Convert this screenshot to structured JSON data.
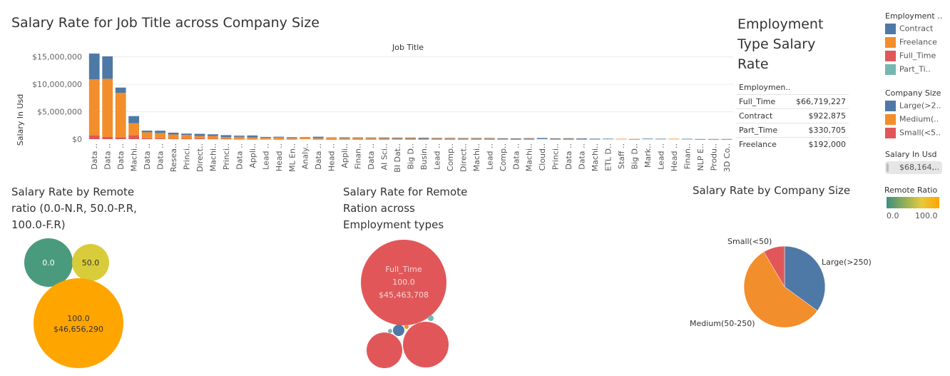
{
  "colors": {
    "contract": "#4e79a7",
    "freelance": "#f28e2b",
    "full_time": "#e15759",
    "part_time": "#76b7b2",
    "large": "#4e79a7",
    "medium": "#f28e2b",
    "small": "#e15759",
    "remote_low": "#59a14f",
    "remote_high": "#ffa500"
  },
  "titles": {
    "main": "Salary Rate for Job Title across Company Size",
    "emp_type": "Employment Type Salary Rate",
    "remote": "Salary Rate by Remote ratio (0.0-N.R, 50.0-P.R, 100.0-F.R)",
    "remote_emp": "Salary Rate for Remote Ration across Employment types",
    "company": "Salary Rate by Company Size"
  },
  "emp_table": {
    "header": "Employmen..",
    "rows": [
      {
        "label": "Full_Time",
        "value": "$66,719,227"
      },
      {
        "label": "Contract",
        "value": "$922,875"
      },
      {
        "label": "Part_Time",
        "value": "$330,705"
      },
      {
        "label": "Freelance",
        "value": "$192,000"
      }
    ]
  },
  "legends": {
    "employment": {
      "title": "Employment ..",
      "items": [
        {
          "label": "Contract",
          "color": "#4e79a7"
        },
        {
          "label": "Freelance",
          "color": "#f28e2b"
        },
        {
          "label": "Full_Time",
          "color": "#e15759"
        },
        {
          "label": "Part_Ti..",
          "color": "#76b7b2"
        }
      ]
    },
    "company": {
      "title": "Company Size",
      "items": [
        {
          "label": "Large(>2..",
          "color": "#4e79a7"
        },
        {
          "label": "Medium(..",
          "color": "#f28e2b"
        },
        {
          "label": "Small(<5..",
          "color": "#e15759"
        }
      ]
    },
    "salary": {
      "title": "Salary In Usd",
      "value": "$68,164,.."
    },
    "remote": {
      "title": "Remote Ratio",
      "min": "0.0",
      "max": "100.0"
    }
  },
  "chart_data": [
    {
      "type": "bar",
      "stacked": true,
      "title": "Salary Rate for Job Title across Company Size",
      "xlabel": "Job Title",
      "ylabel": "Salary In Usd",
      "ylim": [
        0,
        16000000
      ],
      "yticks": [
        "$0",
        "$5,000,000",
        "$10,000,000",
        "$15,000,000"
      ],
      "grid": true,
      "categories": [
        "Data ..",
        "Data ..",
        "Data ..",
        "Machi..",
        "Data ..",
        "Data ..",
        "Resea..",
        "Princi..",
        "Direct..",
        "Machi..",
        "Princi..",
        "Data ..",
        "Appli..",
        "Lead ..",
        "Head ..",
        "ML En..",
        "Analy..",
        "Data ..",
        "Head ..",
        "Appli..",
        "Finan..",
        "Data ..",
        "AI Sci..",
        "BI Dat..",
        "Big D..",
        "Busin..",
        "Lead ..",
        "Comp..",
        "Direct..",
        "Machi..",
        "Lead ..",
        "Comp..",
        "Data ..",
        "Machi..",
        "Cloud..",
        "Princi..",
        "Data ..",
        "Data ..",
        "Machi..",
        "ETL D..",
        "Staff ..",
        "Big D..",
        "Mark..",
        "Lead ..",
        "Head ..",
        "Finan..",
        "NLP E..",
        "Produ..",
        "3D Co.."
      ],
      "series": [
        {
          "name": "Small(<5..",
          "values": [
            700000,
            400000,
            350000,
            700000,
            150000,
            120000,
            100000,
            80000,
            150000,
            80000,
            70000,
            40000,
            30000,
            40000,
            20000,
            30000,
            0,
            20000,
            10000,
            15000,
            10000,
            20000,
            10000,
            15000,
            10000,
            10000,
            10000,
            8000,
            8000,
            8000,
            8000,
            10000,
            6000,
            8000,
            0,
            10000,
            5000,
            5000,
            0,
            0,
            0,
            4000,
            0,
            0,
            0,
            0,
            0,
            0,
            0
          ]
        },
        {
          "name": "Medium(..",
          "values": [
            10200000,
            10600000,
            8100000,
            2200000,
            1100000,
            1000000,
            750000,
            700000,
            400000,
            500000,
            300000,
            400000,
            280000,
            200000,
            280000,
            150000,
            400000,
            150000,
            330000,
            150000,
            200000,
            200000,
            130000,
            100000,
            120000,
            60000,
            120000,
            110000,
            80000,
            90000,
            100000,
            60000,
            100000,
            80000,
            0,
            60000,
            60000,
            30000,
            20000,
            0,
            60000,
            30000,
            0,
            0,
            70000,
            0,
            0,
            0,
            0
          ]
        },
        {
          "name": "Large(>2..",
          "values": [
            4700000,
            4100000,
            950000,
            1300000,
            300000,
            420000,
            330000,
            230000,
            420000,
            300000,
            360000,
            200000,
            360000,
            160000,
            140000,
            170000,
            0,
            270000,
            0,
            160000,
            100000,
            70000,
            150000,
            150000,
            140000,
            180000,
            90000,
            100000,
            110000,
            110000,
            90000,
            90000,
            40000,
            90000,
            200000,
            80000,
            100000,
            110000,
            60000,
            80000,
            0,
            0,
            90000,
            70000,
            0,
            60000,
            20000,
            15000,
            15000
          ]
        }
      ]
    },
    {
      "type": "table",
      "title": "Employment Type Salary Rate",
      "rows": [
        {
          "label": "Full_Time",
          "value": 66719227
        },
        {
          "label": "Contract",
          "value": 922875
        },
        {
          "label": "Part_Time",
          "value": 330705
        },
        {
          "label": "Freelance",
          "value": 192000
        }
      ]
    },
    {
      "type": "bubble",
      "title": "Salary Rate by Remote ratio (0.0-N.R, 50.0-P.R, 100.0-F.R)",
      "bubbles": [
        {
          "label": "0.0",
          "remote": 0.0,
          "color": "#4a9a7e"
        },
        {
          "label": "50.0",
          "remote": 50.0,
          "color": "#d9cc3a"
        },
        {
          "label": "100.0",
          "value_text": "$46,656,290",
          "remote": 100.0,
          "value": 46656290,
          "color": "#ffa500"
        }
      ]
    },
    {
      "type": "bubble",
      "title": "Salary Rate for Remote Ration across Employment types",
      "bubbles": [
        {
          "employment": "Full_Time",
          "remote": "100.0",
          "value_text": "$45,463,708",
          "value": 45463708,
          "color": "#e15759"
        },
        {
          "employment": "Full_Time",
          "color": "#e15759"
        },
        {
          "employment": "Full_Time",
          "color": "#e15759"
        },
        {
          "employment": "Contract",
          "color": "#4e79a7"
        },
        {
          "employment": "Freelance",
          "color": "#f28e2b"
        },
        {
          "employment": "Part_Time",
          "color": "#76b7b2"
        },
        {
          "employment": "Part_Time",
          "color": "#76b7b2"
        }
      ]
    },
    {
      "type": "pie",
      "title": "Salary Rate by Company Size",
      "slices": [
        {
          "label": "Large(>250)",
          "share": 0.35,
          "color": "#4e79a7"
        },
        {
          "label": "Medium(50-250)",
          "share": 0.565,
          "color": "#f28e2b"
        },
        {
          "label": "Small(<50)",
          "share": 0.085,
          "color": "#e15759"
        }
      ]
    }
  ]
}
